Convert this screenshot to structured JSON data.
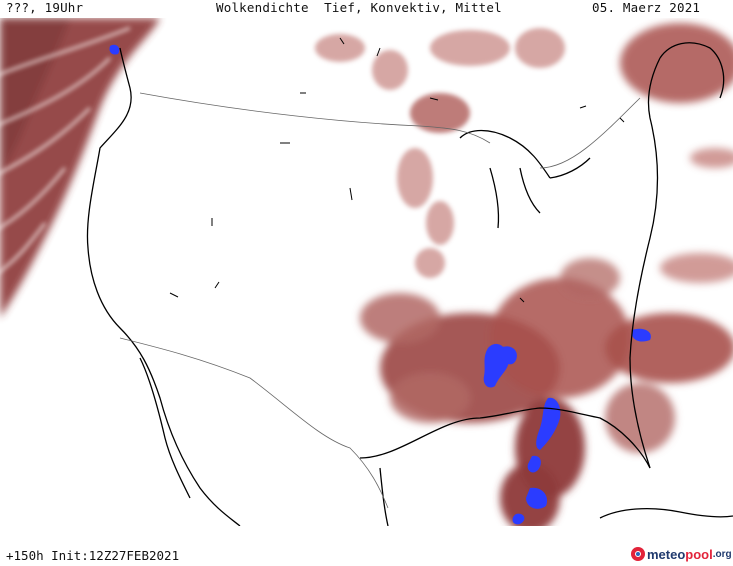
{
  "header": {
    "left": "???, 19Uhr",
    "title": "Wolkendichte  Tief, Konvektiv, Mittel",
    "date": "05. Maerz 2021"
  },
  "footer": {
    "run_info": "+150h Init:12Z27FEB2021",
    "logo": {
      "name_prefix": "meteo",
      "name_accent": "pool",
      "tld": ".org"
    }
  },
  "map": {
    "region": "north-america",
    "colors": {
      "cloud_cover": "#8e3a3a",
      "cloud_cover_light": "#c98a86",
      "convective": "#2b3cff",
      "coastline": "#000000",
      "border": "#555555"
    }
  }
}
